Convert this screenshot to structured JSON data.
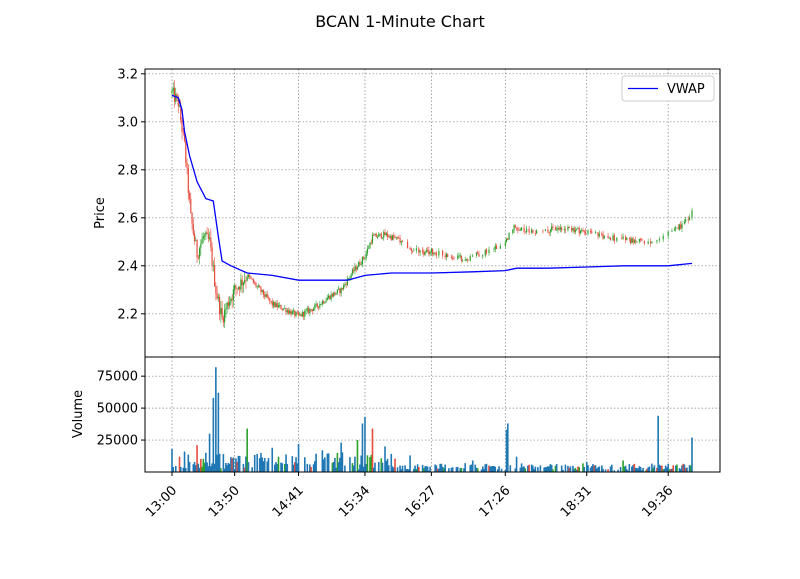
{
  "chart_data": [
    {
      "type": "candlestick",
      "panel": "price",
      "title": "BCAN 1-Minute Chart",
      "ylabel": "Price",
      "ylim": [
        2.02,
        3.22
      ],
      "yticks": [
        "2.2",
        "2.4",
        "2.6",
        "2.8",
        "3.0",
        "3.2"
      ],
      "xticks": [
        "13:00",
        "13:50",
        "14:41",
        "15:34",
        "16:27",
        "17:26",
        "18:31",
        "19:36"
      ],
      "grid": true,
      "legend": {
        "position": "top-right",
        "entries": [
          "VWAP"
        ]
      },
      "colors": {
        "up": "#2ca02c",
        "down": "#e74c3c",
        "vwap": "#0000ff",
        "grid": "#808080"
      },
      "series": [
        {
          "name": "VWAP",
          "type": "line",
          "x": [
            "13:00",
            "13:05",
            "13:08",
            "13:10",
            "13:14",
            "13:20",
            "13:27",
            "13:33",
            "13:37",
            "13:40",
            "13:47",
            "14:00",
            "14:20",
            "14:41",
            "15:00",
            "15:20",
            "15:34",
            "15:55",
            "16:27",
            "17:00",
            "17:26",
            "17:35",
            "18:00",
            "18:31",
            "19:00",
            "19:36",
            "19:55"
          ],
          "y": [
            3.11,
            3.1,
            3.05,
            2.96,
            2.86,
            2.75,
            2.68,
            2.67,
            2.52,
            2.42,
            2.4,
            2.37,
            2.36,
            2.34,
            2.34,
            2.34,
            2.36,
            2.37,
            2.37,
            2.375,
            2.38,
            2.39,
            2.39,
            2.395,
            2.4,
            2.4,
            2.41
          ]
        }
      ],
      "price_path": {
        "x": [
          "13:00",
          "13:05",
          "13:10",
          "13:15",
          "13:20",
          "13:25",
          "13:30",
          "13:35",
          "13:40",
          "13:45",
          "13:50",
          "14:00",
          "14:10",
          "14:20",
          "14:30",
          "14:41",
          "14:55",
          "15:05",
          "15:15",
          "15:25",
          "15:34",
          "15:40",
          "15:50",
          "16:00",
          "16:10",
          "16:20",
          "16:27",
          "16:40",
          "16:55",
          "17:10",
          "17:26",
          "17:33",
          "17:45",
          "18:00",
          "18:15",
          "18:31",
          "18:45",
          "19:00",
          "19:15",
          "19:30",
          "19:36",
          "19:45",
          "19:55"
        ],
        "y": [
          3.12,
          3.08,
          2.9,
          2.6,
          2.45,
          2.52,
          2.5,
          2.3,
          2.18,
          2.25,
          2.3,
          2.36,
          2.3,
          2.24,
          2.22,
          2.19,
          2.23,
          2.27,
          2.3,
          2.38,
          2.44,
          2.52,
          2.53,
          2.51,
          2.47,
          2.45,
          2.46,
          2.44,
          2.43,
          2.46,
          2.5,
          2.56,
          2.54,
          2.55,
          2.56,
          2.54,
          2.52,
          2.51,
          2.5,
          2.5,
          2.54,
          2.56,
          2.62
        ]
      }
    },
    {
      "type": "bar",
      "panel": "volume",
      "ylabel": "Volume",
      "ylim": [
        0,
        90000
      ],
      "yticks": [
        "25000",
        "50000",
        "75000"
      ],
      "grid": true,
      "colors": {
        "bar": "#1f77b4",
        "up": "#2ca02c",
        "down": "#e74c3c"
      },
      "spikes": {
        "x": [
          "13:00",
          "13:10",
          "13:20",
          "13:30",
          "13:33",
          "13:35",
          "13:37",
          "14:00",
          "14:20",
          "14:41",
          "15:00",
          "15:15",
          "15:28",
          "15:32",
          "15:34",
          "15:40",
          "15:50",
          "16:10",
          "17:00",
          "17:27",
          "17:28",
          "17:35",
          "18:31",
          "19:00",
          "19:28",
          "19:55"
        ],
        "values": [
          18000,
          16000,
          21000,
          30000,
          58000,
          82000,
          62000,
          34000,
          19000,
          22000,
          17000,
          23000,
          25000,
          38000,
          43000,
          34000,
          20000,
          13000,
          9000,
          33000,
          38000,
          12000,
          8000,
          9000,
          44000,
          27000
        ]
      }
    }
  ]
}
